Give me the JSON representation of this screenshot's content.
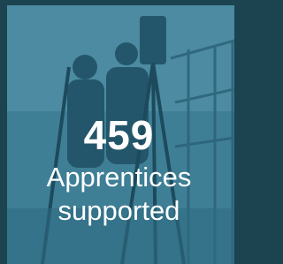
{
  "stat": {
    "value": "459",
    "label": "Apprentices supported"
  }
}
